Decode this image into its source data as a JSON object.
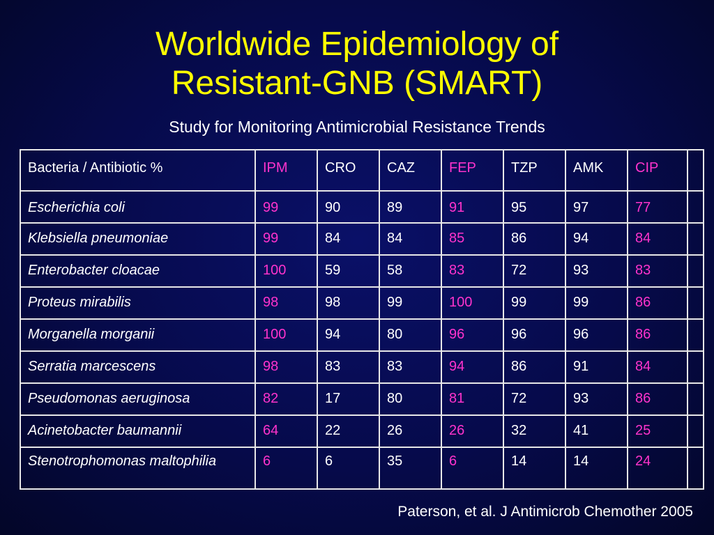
{
  "slide": {
    "title_line1": "Worldwide Epidemiology of",
    "title_line2": "Resistant-GNB  (SMART)",
    "subtitle": "Study for Monitoring Antimicrobial Resistance Trends",
    "citation": "Paterson, et al.  J Antimicrob Chemother 2005"
  },
  "colors": {
    "title": "#ffff00",
    "highlight": "#ff33cc",
    "text": "#ffffff",
    "background": "#060a4a"
  },
  "table": {
    "corner_label": "Bacteria / Antibiotic %",
    "columns": [
      "IPM",
      "CRO",
      "CAZ",
      "FEP",
      "TZP",
      "AMK",
      "CIP"
    ],
    "highlighted_columns": [
      "IPM",
      "FEP",
      "CIP"
    ],
    "rows": [
      {
        "organism": "Escherichia coli",
        "values": [
          "99",
          "90",
          "89",
          "91",
          "95",
          "97",
          "77"
        ]
      },
      {
        "organism": "Klebsiella pneumoniae",
        "values": [
          "99",
          "84",
          "84",
          "85",
          "86",
          "94",
          "84"
        ]
      },
      {
        "organism": "Enterobacter cloacae",
        "values": [
          "100",
          "59",
          "58",
          "83",
          "72",
          "93",
          "83"
        ]
      },
      {
        "organism": "Proteus mirabilis",
        "values": [
          "98",
          "98",
          "99",
          "100",
          "99",
          "99",
          "86"
        ]
      },
      {
        "organism": "Morganella morganii",
        "values": [
          "100",
          "94",
          "80",
          "96",
          "96",
          "96",
          "86"
        ]
      },
      {
        "organism": "Serratia marcescens",
        "values": [
          "98",
          "83",
          "83",
          "94",
          "86",
          "91",
          "84"
        ]
      },
      {
        "organism": "Pseudomonas aeruginosa",
        "values": [
          "82",
          "17",
          "80",
          "81",
          "72",
          "93",
          "86"
        ]
      },
      {
        "organism": "Acinetobacter baumannii",
        "values": [
          "64",
          "22",
          "26",
          "26",
          "32",
          "41",
          "25"
        ]
      },
      {
        "organism": "Stenotrophomonas maltophilia",
        "values": [
          "6",
          "6",
          "35",
          "6",
          "14",
          "14",
          "24"
        ]
      }
    ]
  }
}
